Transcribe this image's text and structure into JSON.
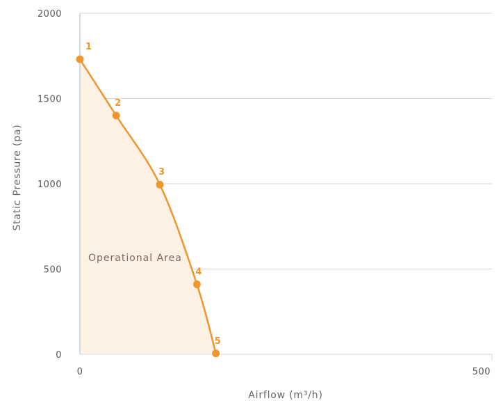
{
  "chart_data": {
    "type": "area",
    "xlabel": "Airflow (m³/h)",
    "ylabel": "Static Pressure (pa)",
    "xlim": [
      0,
      500
    ],
    "ylim": [
      0,
      2000
    ],
    "x_ticks": [
      "0",
      "500"
    ],
    "y_ticks": [
      "0",
      "500",
      "1000",
      "1500",
      "2000"
    ],
    "y_tick_values": [
      0,
      500,
      1000,
      1500,
      2000
    ],
    "grid": true,
    "annotations": [
      "Operational Area"
    ],
    "series": [
      {
        "points": [
          {
            "label": "1",
            "x": 0,
            "y": 1730
          },
          {
            "label": "2",
            "x": 44,
            "y": 1400
          },
          {
            "label": "3",
            "x": 97,
            "y": 995
          },
          {
            "label": "4",
            "x": 142,
            "y": 410
          },
          {
            "label": "5",
            "x": 165,
            "y": 5
          }
        ]
      }
    ],
    "colors": {
      "line": "#f0962e",
      "fill": "#fdf1e4",
      "point_label": "#f0962e",
      "area_label": "#7a6a5e",
      "grid": "#d9d9d9",
      "axis": "#cfdbe5"
    }
  }
}
